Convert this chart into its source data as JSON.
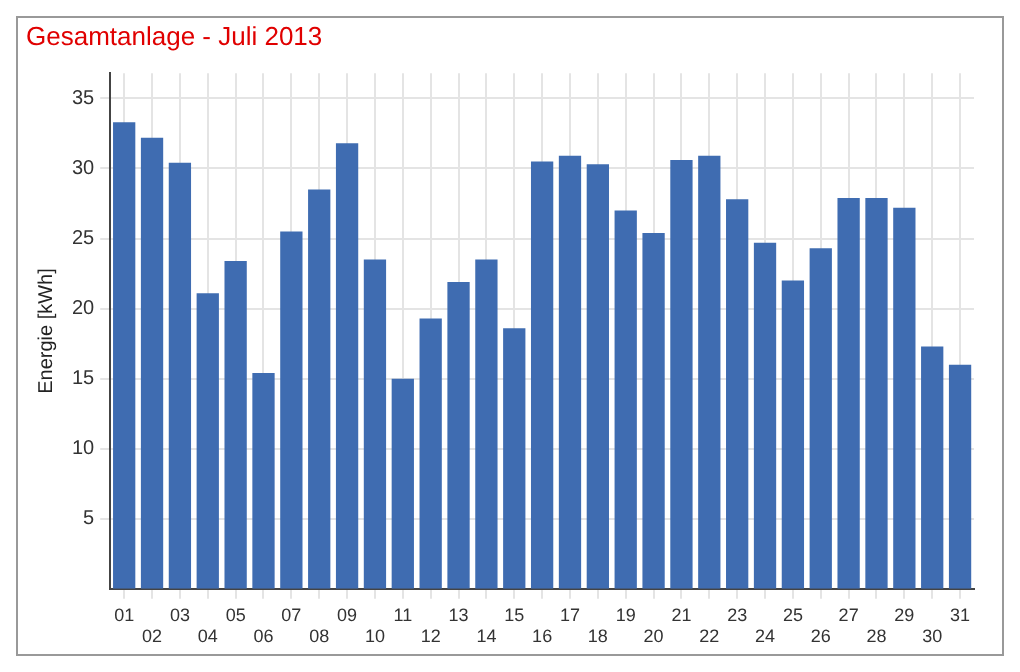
{
  "chart_data": {
    "type": "bar",
    "title": "Gesamtanlage - Juli 2013",
    "ylabel": "Energie [kWh]",
    "categories": [
      "01",
      "02",
      "03",
      "04",
      "05",
      "06",
      "07",
      "08",
      "09",
      "10",
      "11",
      "12",
      "13",
      "14",
      "15",
      "16",
      "17",
      "18",
      "19",
      "20",
      "21",
      "22",
      "23",
      "24",
      "25",
      "26",
      "27",
      "28",
      "29",
      "30",
      "31"
    ],
    "values": [
      33.3,
      32.2,
      30.4,
      21.1,
      23.4,
      15.4,
      25.5,
      28.5,
      31.8,
      23.5,
      15.0,
      19.3,
      21.9,
      23.5,
      18.6,
      30.5,
      30.9,
      30.3,
      27.0,
      25.4,
      30.6,
      30.9,
      27.8,
      24.7,
      22.0,
      24.3,
      27.9,
      27.9,
      27.2,
      17.3,
      16.0
    ],
    "color": "#3f6cb1",
    "ylim": [
      0,
      36.8
    ],
    "yticks": [
      5,
      10,
      15,
      20,
      25,
      30,
      35
    ],
    "grid": true,
    "legend": false
  }
}
